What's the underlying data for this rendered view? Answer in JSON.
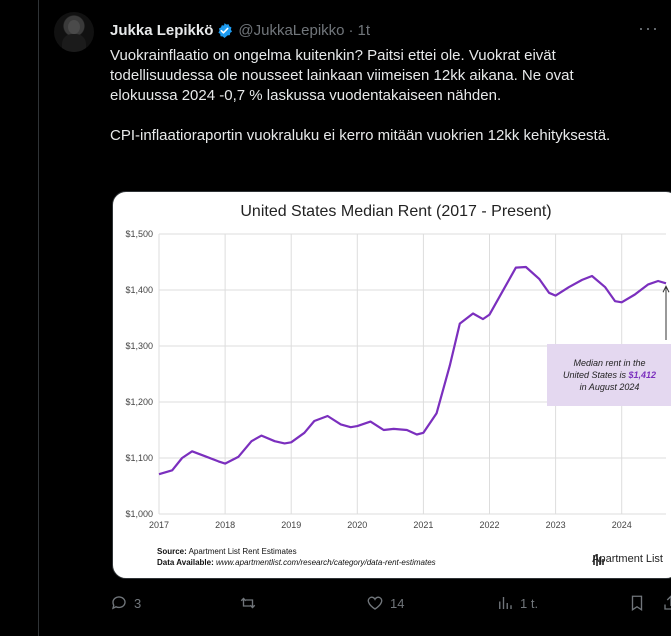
{
  "tweet": {
    "name": "Jukka Lepikkö",
    "handle": "@JukkaLepikko",
    "time": "1t",
    "text": "Vuokrainflaatio on ongelma kuitenkin? Paitsi ettei ole. Vuokrat eivät todellisuudessa ole nousseet lainkaan viimeisen 12kk aikana. Ne ovat elokuussa 2024 -0,7 % laskussa vuodentakaiseen nähden.\n\nCPI-inflaatioraportin vuokraluku ei kerro mitään vuokrien 12kk kehityksestä."
  },
  "actions": {
    "replies": "3",
    "reposts": "",
    "likes": "14",
    "views": "1 t."
  },
  "icons": [
    "verified-badge-icon",
    "more-icon",
    "reply-icon",
    "repost-icon",
    "like-icon",
    "views-icon",
    "bookmark-icon",
    "share-icon"
  ],
  "colors": {
    "accent": "#1d9bf0",
    "line": "#7b2fbe",
    "annot_bg": "#e4d8f0"
  },
  "card": {
    "source_label": "Source:",
    "source_value": "Apartment List Rent Estimates",
    "available_label": "Data Available:",
    "available_value": "www.apartmentlist.com/research/category/data-rent-estimates",
    "logo_text": "Apartment",
    "logo_text2": "List",
    "annotation_line1": "Median rent in the",
    "annotation_line2": "United States is",
    "annotation_value": "$1,412",
    "annotation_line3": "in August 2024"
  },
  "chart_data": {
    "type": "line",
    "title": "United States Median Rent (2017 - Present)",
    "xlabel": "",
    "ylabel": "",
    "x_ticks": [
      "2017",
      "2018",
      "2019",
      "2020",
      "2021",
      "2022",
      "2023",
      "2024"
    ],
    "y_ticks": [
      "$1,000",
      "$1,100",
      "$1,200",
      "$1,300",
      "$1,400",
      "$1,500"
    ],
    "ylim": [
      1000,
      1500
    ],
    "xlim": [
      2017,
      2024.67
    ],
    "grid": true,
    "series": [
      {
        "x": [
          2017.0,
          2017.2,
          2017.35,
          2017.5,
          2017.7,
          2017.9,
          2018.0,
          2018.2,
          2018.4,
          2018.55,
          2018.75,
          2018.9,
          2019.0,
          2019.2,
          2019.35,
          2019.55,
          2019.75,
          2019.9,
          2020.0,
          2020.2,
          2020.4,
          2020.55,
          2020.75,
          2020.9,
          2021.0,
          2021.2,
          2021.4,
          2021.55,
          2021.75,
          2021.9,
          2022.0,
          2022.2,
          2022.4,
          2022.55,
          2022.75,
          2022.9,
          2023.0,
          2023.2,
          2023.4,
          2023.55,
          2023.75,
          2023.9,
          2024.0,
          2024.2,
          2024.4,
          2024.55,
          2024.67
        ],
        "y": [
          1071,
          1078,
          1100,
          1112,
          1103,
          1094,
          1090,
          1102,
          1130,
          1140,
          1130,
          1126,
          1128,
          1145,
          1166,
          1175,
          1160,
          1155,
          1157,
          1165,
          1150,
          1152,
          1150,
          1142,
          1145,
          1180,
          1265,
          1340,
          1358,
          1348,
          1356,
          1398,
          1440,
          1441,
          1420,
          1395,
          1390,
          1405,
          1418,
          1425,
          1405,
          1380,
          1378,
          1392,
          1410,
          1416,
          1412
        ]
      }
    ]
  }
}
